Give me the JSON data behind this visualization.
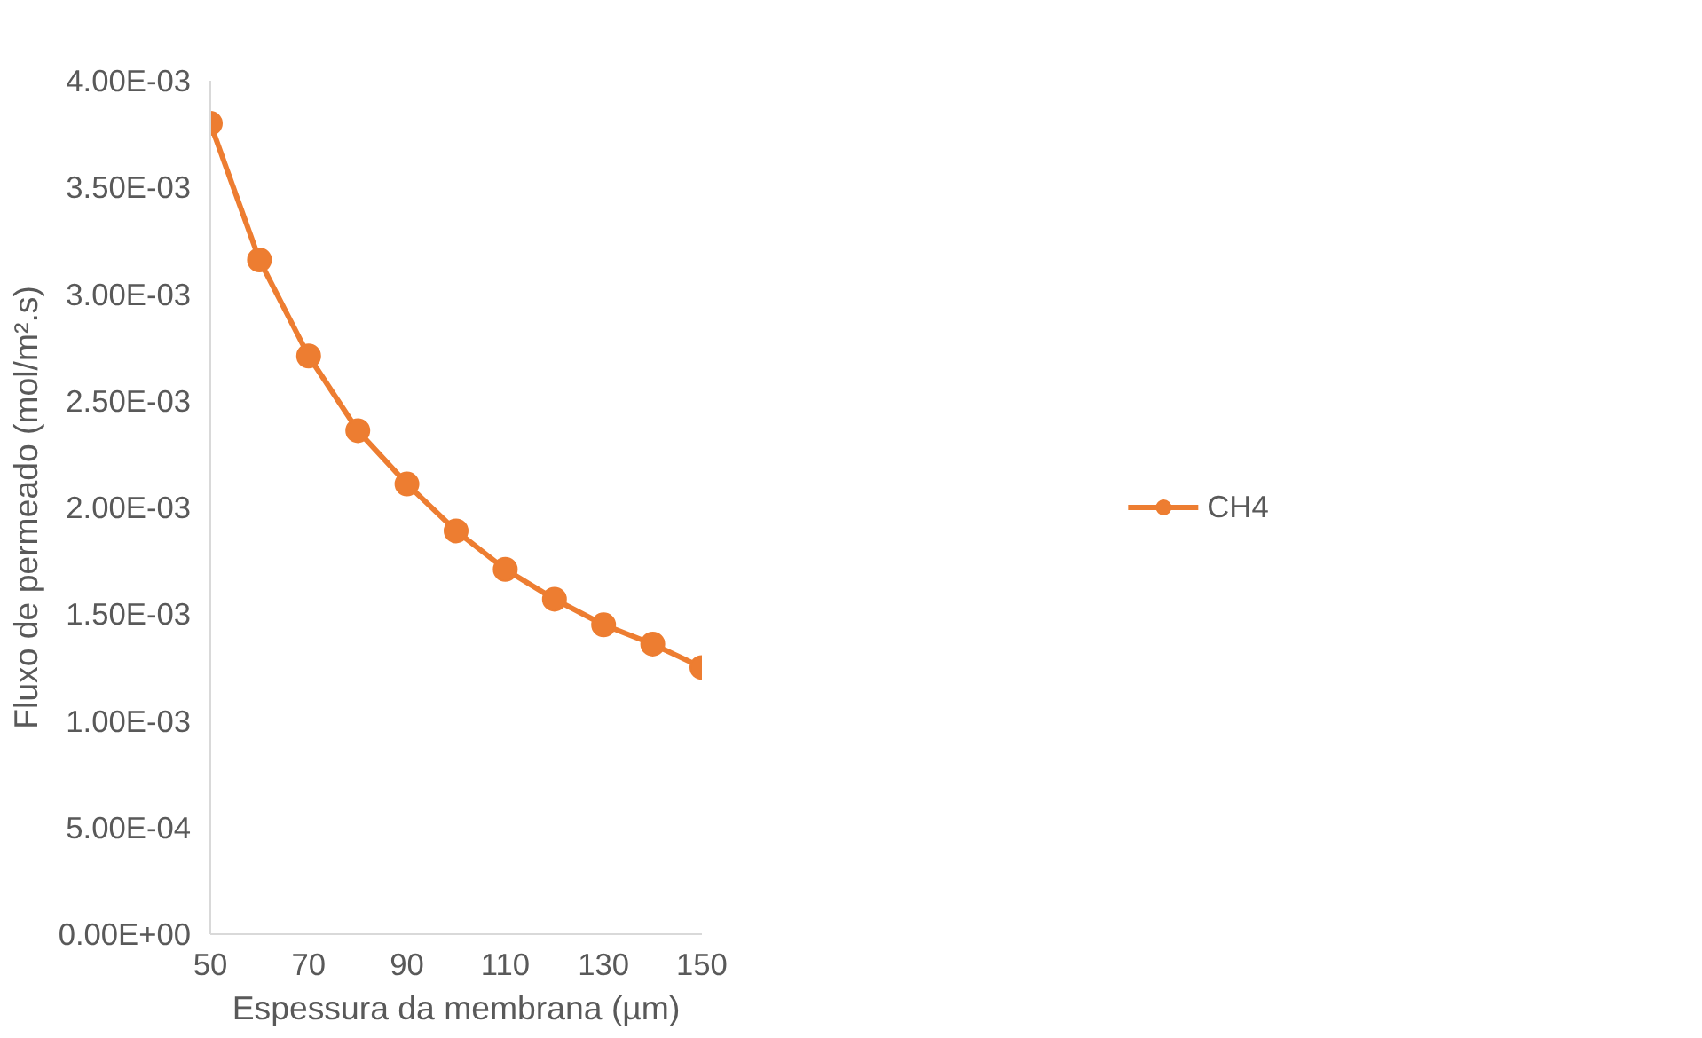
{
  "chart_data": {
    "type": "line",
    "xlabel": "Espessura da membrana (µm)",
    "ylabel": "Fluxo de permeado (mol/m².s)",
    "x": [
      50,
      60,
      70,
      80,
      90,
      100,
      110,
      120,
      130,
      140,
      150
    ],
    "series": [
      {
        "name": "CH4",
        "color": "#ed7d31",
        "values": [
          0.0038,
          0.00316,
          0.00271,
          0.00236,
          0.00211,
          0.00189,
          0.00171,
          0.00157,
          0.00145,
          0.00136,
          0.00125
        ]
      }
    ],
    "xlim": [
      50,
      150
    ],
    "xticks": [
      50,
      70,
      90,
      110,
      130,
      150
    ],
    "ylim": [
      0,
      0.004
    ],
    "yticks": [
      {
        "value": 0,
        "label": "0.00E+00"
      },
      {
        "value": 0.0005,
        "label": "5.00E-04"
      },
      {
        "value": 0.001,
        "label": "1.00E-03"
      },
      {
        "value": 0.0015,
        "label": "1.50E-03"
      },
      {
        "value": 0.002,
        "label": "2.00E-03"
      },
      {
        "value": 0.0025,
        "label": "2.50E-03"
      },
      {
        "value": 0.003,
        "label": "3.00E-03"
      },
      {
        "value": 0.0035,
        "label": "3.50E-03"
      },
      {
        "value": 0.004,
        "label": "4.00E-03"
      }
    ],
    "grid": false,
    "legend": "right",
    "marker": "circle",
    "line_style": "solid"
  }
}
